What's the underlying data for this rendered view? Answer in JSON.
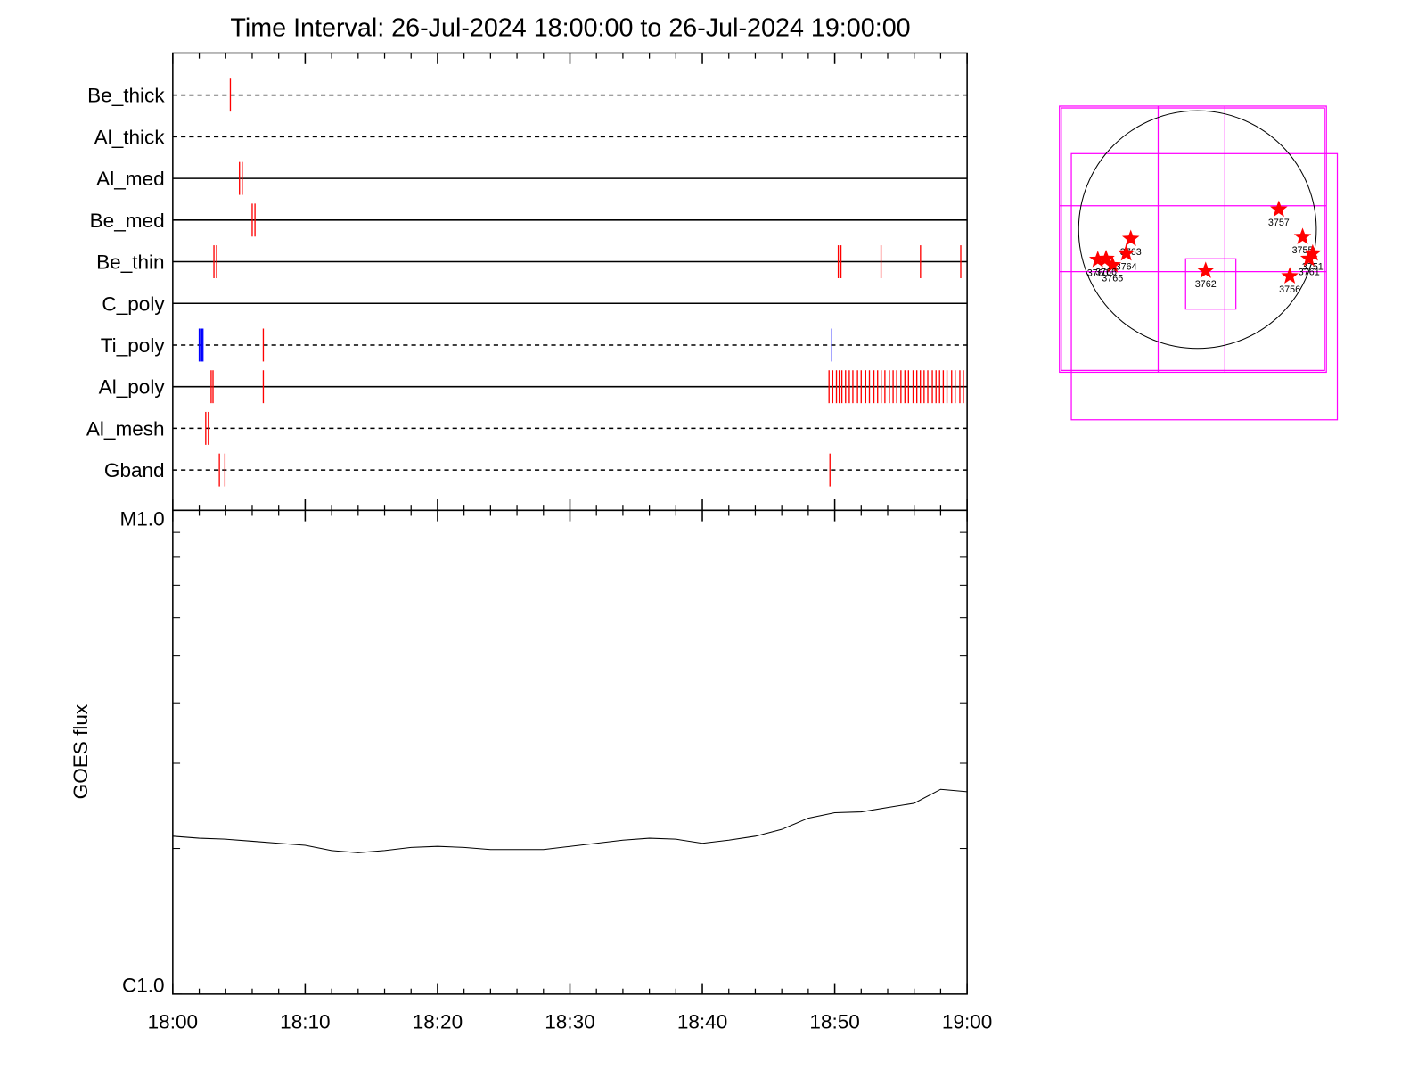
{
  "chart_data": [
    {
      "type": "timeline",
      "title": "Time Interval: 26-Jul-2024 18:00:00 to 26-Jul-2024 19:00:00",
      "xlim": [
        0,
        60
      ],
      "rows": [
        {
          "name": "Be_thick",
          "line": "dashed",
          "series": [
            {
              "color": "#ff0000",
              "values": [
                4.35
              ]
            }
          ]
        },
        {
          "name": "Al_thick",
          "line": "dashed",
          "series": []
        },
        {
          "name": "Al_med",
          "line": "solid",
          "series": [
            {
              "color": "#ff0000",
              "values": [
                5.04,
                5.25
              ]
            }
          ]
        },
        {
          "name": "Be_med",
          "line": "solid",
          "series": [
            {
              "color": "#ff0000",
              "values": [
                6.0,
                6.21
              ]
            }
          ]
        },
        {
          "name": "Be_thin",
          "line": "solid",
          "series": [
            {
              "color": "#ff0000",
              "values": [
                3.11,
                3.31,
                50.27,
                50.47,
                53.5,
                56.48,
                59.52
              ]
            }
          ]
        },
        {
          "name": "C_poly",
          "line": "solid",
          "series": []
        },
        {
          "name": "Ti_poly",
          "line": "dashed",
          "series": [
            {
              "color": "#0000ff",
              "values": [
                2.0,
                2.1,
                2.2,
                2.28,
                49.78
              ]
            },
            {
              "color": "#ff0000",
              "values": [
                6.84
              ]
            }
          ]
        },
        {
          "name": "Al_poly",
          "line": "solid",
          "series": [
            {
              "color": "#ff0000",
              "values": [
                2.9,
                3.04,
                6.84,
                49.57,
                49.85,
                50.13,
                50.34,
                50.54,
                50.82,
                51.1,
                51.37,
                51.72,
                52.0,
                52.34,
                52.62,
                52.96,
                53.24,
                53.51,
                53.79,
                54.13,
                54.41,
                54.68,
                55.0,
                55.3,
                55.57,
                55.92,
                56.2,
                56.47,
                56.75,
                57.03,
                57.37,
                57.65,
                57.92,
                58.2,
                58.48,
                58.83,
                59.1,
                59.45,
                59.72
              ]
            }
          ]
        },
        {
          "name": "Al_mesh",
          "line": "dashed",
          "series": [
            {
              "color": "#ff0000",
              "values": [
                2.49,
                2.69
              ]
            }
          ]
        },
        {
          "name": "Gband",
          "line": "dashed",
          "series": [
            {
              "color": "#ff0000",
              "values": [
                3.52,
                3.94,
                49.64
              ]
            }
          ]
        }
      ]
    },
    {
      "type": "line",
      "ylabel": "GOES flux",
      "color": "#000000",
      "log_y": true,
      "x": [
        0,
        2,
        4,
        6,
        8,
        10,
        12,
        14,
        16,
        18,
        20,
        22,
        24,
        26,
        28,
        30,
        32,
        34,
        36,
        38,
        40,
        42,
        44,
        46,
        48,
        50,
        52,
        54,
        56,
        58,
        60
      ],
      "values": [
        2.12e-06,
        2.1e-06,
        2.09e-06,
        2.07e-06,
        2.05e-06,
        2.03e-06,
        1.98e-06,
        1.96e-06,
        1.98e-06,
        2.01e-06,
        2.02e-06,
        2.01e-06,
        1.99e-06,
        1.99e-06,
        1.99e-06,
        2.02e-06,
        2.05e-06,
        2.08e-06,
        2.1e-06,
        2.09e-06,
        2.05e-06,
        2.08e-06,
        2.12e-06,
        2.19e-06,
        2.31e-06,
        2.37e-06,
        2.38e-06,
        2.43e-06,
        2.48e-06,
        2.65e-06,
        2.62e-06
      ],
      "xlim": [
        0,
        60
      ],
      "xticks": [
        {
          "value": 0,
          "label": "18:00"
        },
        {
          "value": 10,
          "label": "18:10"
        },
        {
          "value": 20,
          "label": "18:20"
        },
        {
          "value": 30,
          "label": "18:30"
        },
        {
          "value": 40,
          "label": "18:40"
        },
        {
          "value": 50,
          "label": "18:50"
        },
        {
          "value": 60,
          "label": "19:00"
        }
      ],
      "ylim": [
        1e-06,
        1e-05
      ],
      "yticks": [
        {
          "value": 1e-06,
          "label": "C1.0"
        },
        {
          "value": 1e-05,
          "label": "M1.0"
        }
      ]
    },
    {
      "type": "map",
      "radius": 944,
      "color": "#ff0000",
      "regions": [
        {
          "name": "3757",
          "x": 646,
          "y": 160
        },
        {
          "name": "3755",
          "x": 835,
          "y": -58
        },
        {
          "name": "3751",
          "x": 915,
          "y": -189
        },
        {
          "name": "3761",
          "x": 886,
          "y": -232
        },
        {
          "name": "3756",
          "x": 733,
          "y": -370
        },
        {
          "name": "3762",
          "x": 65,
          "y": -327
        },
        {
          "name": "3763",
          "x": -530,
          "y": -73
        },
        {
          "name": "3764",
          "x": -566,
          "y": -189
        },
        {
          "name": "3765",
          "x": -675,
          "y": -283
        },
        {
          "name": "3760",
          "x": -792,
          "y": -240
        },
        {
          "name": "3766",
          "x": -726,
          "y": -232
        }
      ]
    }
  ]
}
